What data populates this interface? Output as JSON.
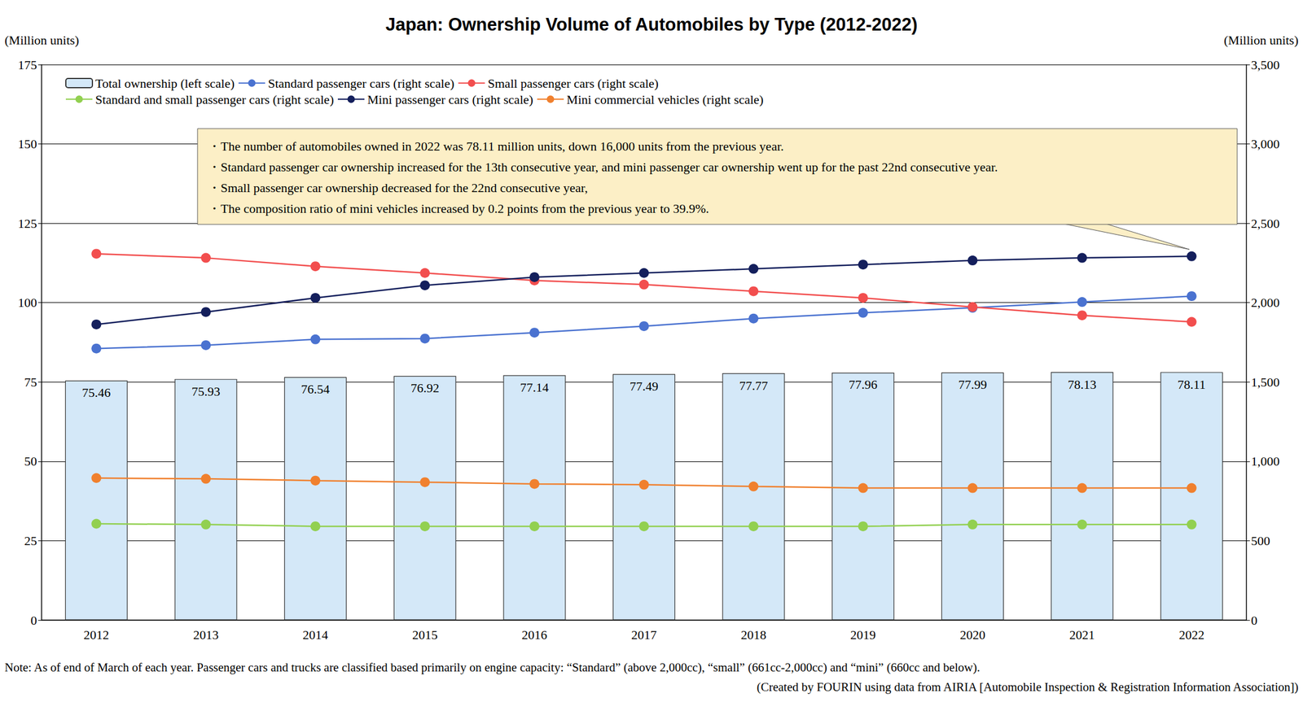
{
  "chart_data": {
    "type": "bar",
    "title": "Japan: Ownership Volume of Automobiles by Type (2012-2022)",
    "ylabel": "(Million units)",
    "y2label": "(Million units)",
    "categories": [
      "2012",
      "2013",
      "2014",
      "2015",
      "2016",
      "2017",
      "2018",
      "2019",
      "2020",
      "2021",
      "2022"
    ],
    "ylim": [
      0,
      175
    ],
    "yticks": [
      0,
      25,
      50,
      75,
      100,
      125,
      150,
      175
    ],
    "y2lim": [
      0,
      3500
    ],
    "y2ticks": [
      0,
      500,
      {
        "value": 1000,
        "label": "1,000"
      },
      {
        "value": 1500,
        "label": "1,500"
      },
      {
        "value": 2000,
        "label": "2,000"
      },
      {
        "value": 2500,
        "label": "2,500"
      },
      {
        "value": 3000,
        "label": "3,000"
      },
      {
        "value": 3500,
        "label": "3,500"
      }
    ],
    "grid": true,
    "legend": "top left",
    "series": [
      {
        "name": "Total ownership (left scale)",
        "type": "bar",
        "color": "#d4e8f8",
        "data_labels": true,
        "values": [
          75.46,
          75.93,
          76.54,
          76.92,
          77.14,
          77.49,
          77.77,
          77.96,
          77.99,
          78.13,
          78.11
        ]
      },
      {
        "name": "Standard passenger cars (right scale)",
        "type": "line",
        "axis": "y2",
        "color": "#4a72d0",
        "marker": "circle",
        "values": [
          1711,
          1732,
          1769,
          1774,
          1811,
          1852,
          1900,
          1936,
          1968,
          2004,
          2041
        ]
      },
      {
        "name": "Small passenger cars (right scale)",
        "type": "line",
        "axis": "y2",
        "color": "#f24e4e",
        "marker": "circle",
        "values": [
          2308,
          2282,
          2229,
          2187,
          2140,
          2114,
          2072,
          2030,
          1973,
          1920,
          1879
        ]
      },
      {
        "name": "Standard and small passenger cars (right scale)",
        "type": "line",
        "axis": "y2",
        "color": "#92d050",
        "marker": "circle",
        "values": [
          607,
          602,
          591,
          591,
          591,
          591,
          591,
          591,
          602,
          602,
          602
        ]
      },
      {
        "name": "Mini passenger cars (right scale)",
        "type": "line",
        "axis": "y2",
        "color": "#141f5c",
        "marker": "circle",
        "values": [
          1863,
          1941,
          2030,
          2109,
          2161,
          2187,
          2213,
          2240,
          2266,
          2282,
          2292
        ]
      },
      {
        "name": "Mini commercial vehicles (right scale)",
        "type": "line",
        "axis": "y2",
        "color": "#f0802e",
        "marker": "circle",
        "values": [
          895,
          890,
          879,
          869,
          858,
          853,
          842,
          832,
          832,
          832,
          832
        ]
      }
    ],
    "annotations": [
      "・The number of automobiles owned in 2022 was 78.11 million units, down 16,000 units from the previous year.",
      "・Standard passenger car ownership increased for the 13th consecutive year, and mini passenger car ownership went up for the past 22nd consecutive year.",
      "・Small passenger car ownership decreased for the 22nd consecutive year,",
      "・The composition ratio of mini vehicles increased by 0.2 points from the previous year to 39.9%."
    ],
    "note": [
      "Note: As of end of March of each year. Passenger cars and trucks are classified based primarily on engine capacity: “Standard” (above 2,000cc), “small” (661cc-2,000cc) and “mini” (660cc and below).",
      "(Created by FOURIN using data from AIRIA [Automobile Inspection & Registration Information Association])"
    ]
  }
}
